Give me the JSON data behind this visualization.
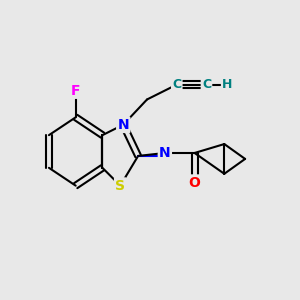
{
  "bg_color": "#e8e8e8",
  "atom_colors": {
    "C": "#000000",
    "N": "#0000ff",
    "S": "#cccc00",
    "O": "#ff0000",
    "F": "#ff00ff",
    "H": "#008080"
  },
  "bond_color": "#000000",
  "title": ""
}
